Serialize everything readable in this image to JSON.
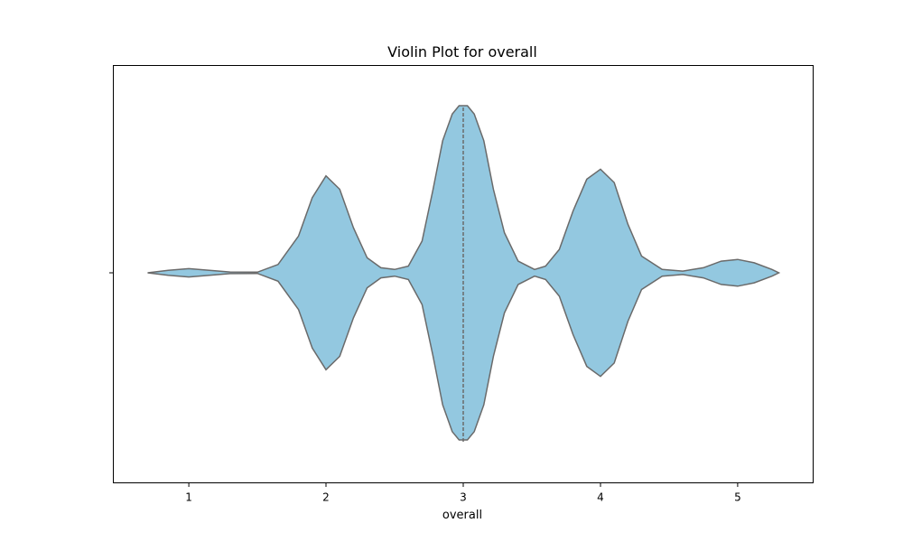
{
  "chart_data": {
    "type": "violin",
    "title": "Violin Plot for overall",
    "xlabel": "overall",
    "ylabel": "",
    "orientation": "horizontal",
    "xlim": [
      0.45,
      5.55
    ],
    "xticks": [
      1,
      2,
      3,
      4,
      5
    ],
    "xtick_labels": [
      "1",
      "2",
      "3",
      "4",
      "5"
    ],
    "data_range": [
      0.7,
      5.3
    ],
    "density_profile": {
      "x": [
        0.7,
        0.85,
        1.0,
        1.15,
        1.3,
        1.5,
        1.65,
        1.8,
        1.9,
        2.0,
        2.1,
        2.2,
        2.3,
        2.4,
        2.5,
        2.6,
        2.7,
        2.78,
        2.85,
        2.92,
        2.97,
        3.0,
        3.03,
        3.08,
        3.15,
        3.22,
        3.3,
        3.4,
        3.52,
        3.6,
        3.7,
        3.8,
        3.9,
        4.0,
        4.1,
        4.2,
        4.3,
        4.45,
        4.6,
        4.75,
        4.88,
        5.0,
        5.12,
        5.25,
        5.3
      ],
      "half_width": [
        0.0,
        0.015,
        0.025,
        0.015,
        0.005,
        0.004,
        0.05,
        0.22,
        0.45,
        0.58,
        0.5,
        0.27,
        0.09,
        0.03,
        0.02,
        0.04,
        0.19,
        0.5,
        0.79,
        0.95,
        1.0,
        1.0,
        1.0,
        0.95,
        0.79,
        0.5,
        0.24,
        0.07,
        0.02,
        0.04,
        0.14,
        0.37,
        0.56,
        0.62,
        0.54,
        0.29,
        0.1,
        0.02,
        0.01,
        0.03,
        0.07,
        0.08,
        0.06,
        0.02,
        0.0
      ]
    },
    "inner": "points",
    "inner_value": 3,
    "fill_color": "#93c8e0",
    "edge_color": "#6a6a6a",
    "grid": false,
    "legend": "none"
  }
}
